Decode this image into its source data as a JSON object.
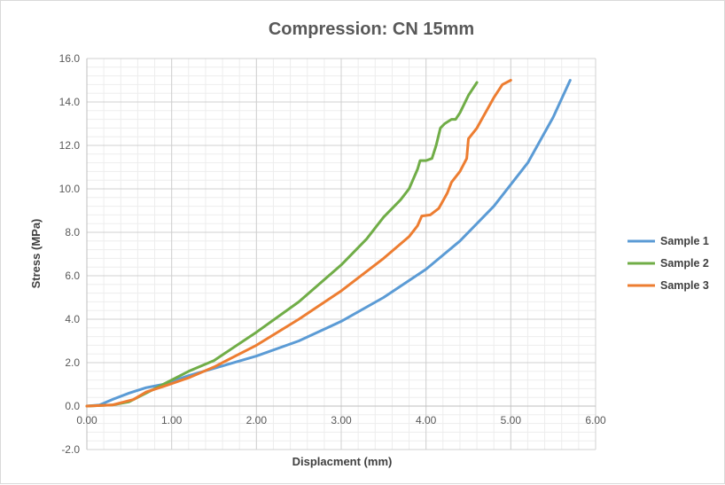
{
  "chart_data": {
    "type": "line",
    "title": "Compression: CN 15mm",
    "xlabel": "Displacment (mm)",
    "ylabel": "Stress (MPa)",
    "xlim": [
      0,
      6
    ],
    "ylim": [
      -2,
      16
    ],
    "x_ticks": [
      "0.00",
      "1.00",
      "2.00",
      "3.00",
      "4.00",
      "5.00",
      "6.00"
    ],
    "y_ticks": [
      "-2.0",
      "0.0",
      "2.0",
      "4.0",
      "6.0",
      "8.0",
      "10.0",
      "12.0",
      "14.0",
      "16.0"
    ],
    "grid": "major and minor",
    "legend_position": "right",
    "series": [
      {
        "name": "Sample 1",
        "color": "#5b9bd5",
        "points": [
          [
            0,
            0
          ],
          [
            0.15,
            0.05
          ],
          [
            0.3,
            0.3
          ],
          [
            0.5,
            0.6
          ],
          [
            0.7,
            0.85
          ],
          [
            0.9,
            1.0
          ],
          [
            1.2,
            1.4
          ],
          [
            1.6,
            1.85
          ],
          [
            2.0,
            2.3
          ],
          [
            2.5,
            3.0
          ],
          [
            3.0,
            3.9
          ],
          [
            3.5,
            5.0
          ],
          [
            4.0,
            6.3
          ],
          [
            4.4,
            7.6
          ],
          [
            4.8,
            9.2
          ],
          [
            5.2,
            11.2
          ],
          [
            5.5,
            13.3
          ],
          [
            5.7,
            15.0
          ]
        ]
      },
      {
        "name": "Sample 2",
        "color": "#70ad47",
        "points": [
          [
            0,
            0
          ],
          [
            0.3,
            0.05
          ],
          [
            0.5,
            0.2
          ],
          [
            0.7,
            0.6
          ],
          [
            0.9,
            1.0
          ],
          [
            1.2,
            1.6
          ],
          [
            1.5,
            2.1
          ],
          [
            2.0,
            3.4
          ],
          [
            2.5,
            4.8
          ],
          [
            3.0,
            6.5
          ],
          [
            3.3,
            7.7
          ],
          [
            3.5,
            8.7
          ],
          [
            3.7,
            9.5
          ],
          [
            3.8,
            10.0
          ],
          [
            3.9,
            10.9
          ],
          [
            3.93,
            11.3
          ],
          [
            4.0,
            11.3
          ],
          [
            4.07,
            11.4
          ],
          [
            4.12,
            12.0
          ],
          [
            4.17,
            12.8
          ],
          [
            4.22,
            13.0
          ],
          [
            4.3,
            13.2
          ],
          [
            4.35,
            13.2
          ],
          [
            4.4,
            13.5
          ],
          [
            4.5,
            14.3
          ],
          [
            4.6,
            14.9
          ]
        ]
      },
      {
        "name": "Sample 3",
        "color": "#ed7d31",
        "points": [
          [
            0,
            0
          ],
          [
            0.3,
            0.05
          ],
          [
            0.55,
            0.3
          ],
          [
            0.7,
            0.65
          ],
          [
            0.9,
            0.9
          ],
          [
            1.2,
            1.3
          ],
          [
            1.5,
            1.8
          ],
          [
            2.0,
            2.8
          ],
          [
            2.5,
            4.0
          ],
          [
            3.0,
            5.3
          ],
          [
            3.5,
            6.8
          ],
          [
            3.8,
            7.8
          ],
          [
            3.9,
            8.3
          ],
          [
            3.95,
            8.75
          ],
          [
            4.05,
            8.8
          ],
          [
            4.15,
            9.1
          ],
          [
            4.25,
            9.8
          ],
          [
            4.3,
            10.3
          ],
          [
            4.4,
            10.8
          ],
          [
            4.48,
            11.4
          ],
          [
            4.5,
            12.3
          ],
          [
            4.6,
            12.8
          ],
          [
            4.7,
            13.5
          ],
          [
            4.8,
            14.2
          ],
          [
            4.9,
            14.8
          ],
          [
            5.0,
            15.0
          ]
        ]
      }
    ]
  }
}
